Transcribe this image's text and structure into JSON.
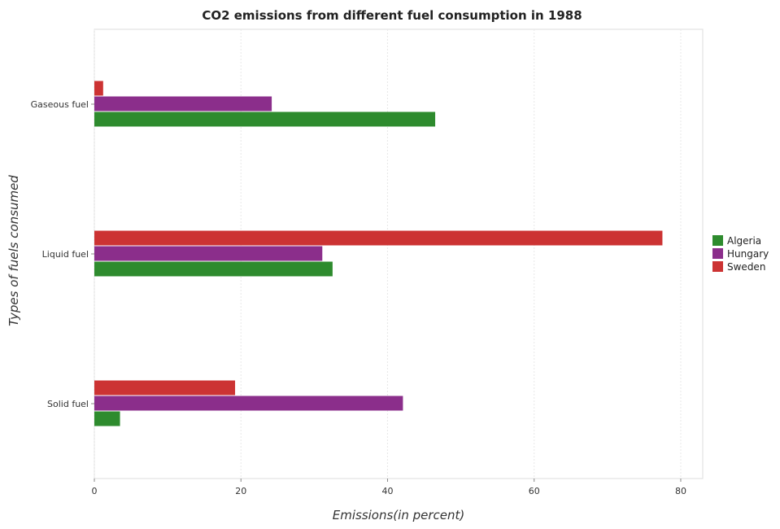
{
  "chart_data": {
    "type": "bar",
    "orientation": "horizontal",
    "title": "CO2 emissions from different fuel consumption in 1988",
    "xlabel": "Emissions(in percent)",
    "ylabel": "Types of fuels consumed",
    "categories": [
      "Gaseous fuel",
      "Liquid fuel",
      "Solid fuel"
    ],
    "series": [
      {
        "name": "Algeria",
        "color": "#2e8b2e",
        "values": [
          46.5,
          32.5,
          3.5
        ]
      },
      {
        "name": "Hungary",
        "color": "#8b2e8b",
        "values": [
          24.2,
          31.1,
          42.1
        ]
      },
      {
        "name": "Sweden",
        "color": "#cc3333",
        "values": [
          1.2,
          77.5,
          19.2
        ]
      }
    ],
    "xlim": [
      0,
      83
    ],
    "xticks": [
      0,
      20,
      40,
      60,
      80
    ],
    "grid": true,
    "legend_position": "right"
  }
}
